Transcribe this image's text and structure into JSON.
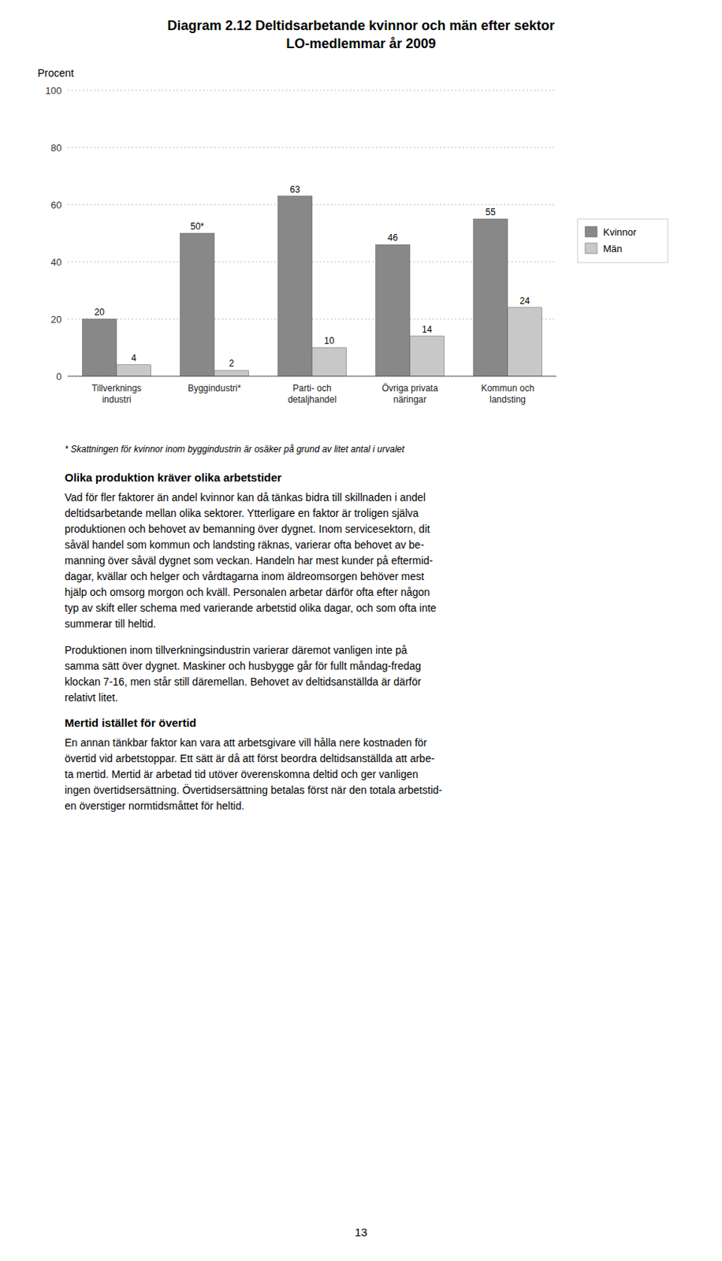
{
  "chart_data": {
    "type": "bar",
    "title": "Diagram 2.12 Deltidsarbetande kvinnor och män efter sektor",
    "subtitle": "LO-medlemmar år 2009",
    "y_label": "Procent",
    "categories": [
      "Tillverknings\nindustri",
      "Byggindustri*",
      "Parti- och\ndetaljhandel",
      "Övriga privata\nnäringar",
      "Kommun och\nlandsting"
    ],
    "series": [
      {
        "name": "Kvinnor",
        "color": "#888888",
        "values": [
          20,
          50,
          63,
          46,
          55
        ],
        "value_labels": [
          "20",
          "50*",
          "63",
          "46",
          "55"
        ]
      },
      {
        "name": "Män",
        "color": "#c8c8c8",
        "values": [
          4,
          2,
          10,
          14,
          24
        ]
      }
    ],
    "ylim": [
      0,
      100
    ],
    "yticks": [
      0,
      20,
      40,
      60,
      80,
      100
    ],
    "grid": true,
    "legend": "right",
    "data_labels": true,
    "annotations": [
      "* Skattningen för kvinnor inom byggindustrin är osäker på grund av litet antal i urvalet"
    ]
  },
  "body": [
    {
      "heading": "Olika produktion kräver olika arbetstider",
      "paragraphs": [
        [
          "Vad för fler faktorer än andel kvinnor kan då tänkas bidra till skillnaden i andel",
          "deltidsarbetande mellan olika sektorer. Ytterligare en faktor är troligen själva",
          "produktionen och behovet av bemanning över dygnet. Inom servicesektorn, dit",
          "såväl handel som kommun och landsting räknas, varierar ofta behovet av be-",
          "manning över såväl dygnet som veckan. Handeln har mest kunder på eftermid-",
          "dagar, kvällar och helger och vårdtagarna inom äldreomsorgen behöver mest",
          "hjälp och omsorg morgon och kväll. Personalen arbetar därför ofta efter någon",
          "typ av skift eller schema med varierande arbetstid olika dagar, och som ofta inte",
          "summerar till heltid."
        ],
        [
          "Produktionen inom tillverkningsindustrin varierar däremot vanligen inte på",
          "samma sätt över dygnet. Maskiner och husbygge går för fullt måndag-fredag",
          "klockan 7-16, men står still däremellan. Behovet av deltidsanställda är därför",
          "relativt litet."
        ]
      ]
    },
    {
      "heading": "Mertid istället för övertid",
      "paragraphs": [
        [
          "En annan tänkbar faktor kan vara att arbetsgivare vill hålla nere kostnaden för",
          "övertid vid arbetstoppar. Ett sätt är då att först beordra deltidsanställda att arbe-",
          "ta mertid. Mertid är arbetad tid utöver överenskomna deltid och ger vanligen",
          "ingen övertidsersättning. Övertidsersättning betalas först när den totala arbetstid-",
          "en överstiger normtidsmåttet för heltid."
        ]
      ]
    }
  ],
  "page_number": "13"
}
